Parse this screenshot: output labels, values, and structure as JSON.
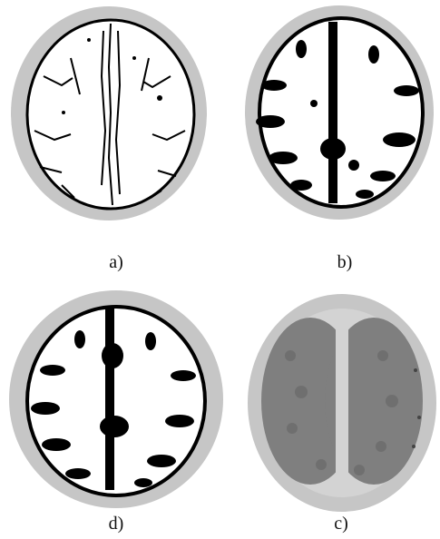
{
  "figure": {
    "panels": [
      {
        "id": "a",
        "label": "a)",
        "style": "edges"
      },
      {
        "id": "b",
        "label": "b)",
        "style": "mask"
      },
      {
        "id": "d",
        "label": "d)",
        "style": "mask"
      },
      {
        "id": "c",
        "label": "c)",
        "style": "texture"
      }
    ],
    "colors": {
      "skull": "#c6c6c6",
      "brain": "#ffffff",
      "dark": "#000000",
      "tissue": "#7f7f7f",
      "background_region": "#cfcfcf"
    }
  }
}
